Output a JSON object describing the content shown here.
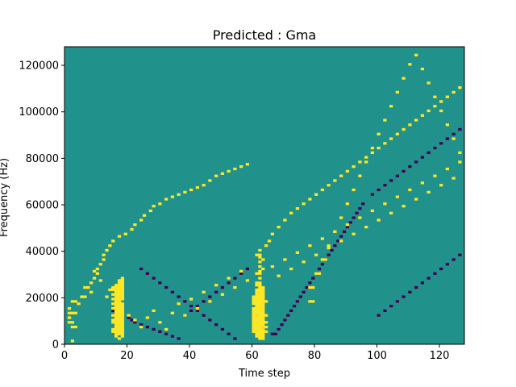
{
  "chart_data": {
    "type": "heatmap",
    "title": "Predicted : Gma",
    "xlabel": "Time step",
    "ylabel": "Frequency (Hz)",
    "xlim": [
      0,
      128
    ],
    "ylim": [
      0,
      128000
    ],
    "xticks": [
      0,
      20,
      40,
      60,
      80,
      100,
      120
    ],
    "yticks": [
      0,
      20000,
      40000,
      60000,
      80000,
      100000,
      120000
    ],
    "xtick_labels": [
      "0",
      "20",
      "40",
      "60",
      "80",
      "100",
      "120"
    ],
    "ytick_labels": [
      "0",
      "20000",
      "40000",
      "60000",
      "80000",
      "100000",
      "120000"
    ],
    "grid": false,
    "n_time_steps": 128,
    "n_freq_bins": 128,
    "levels": [
      -1,
      0,
      1
    ],
    "colors": {
      "-1": "#440154",
      "0": "#21918c",
      "1": "#fde725"
    },
    "background_level": 0,
    "high_cells": [
      [
        17,
        2
      ],
      [
        16,
        3
      ],
      [
        18,
        3
      ],
      [
        16,
        4
      ],
      [
        17,
        4
      ],
      [
        18,
        4
      ],
      [
        15,
        5
      ],
      [
        16,
        5
      ],
      [
        17,
        5
      ],
      [
        18,
        5
      ],
      [
        15,
        6
      ],
      [
        16,
        6
      ],
      [
        17,
        6
      ],
      [
        18,
        6
      ],
      [
        16,
        7
      ],
      [
        17,
        7
      ],
      [
        18,
        7
      ],
      [
        16,
        8
      ],
      [
        17,
        8
      ],
      [
        18,
        8
      ],
      [
        15,
        9
      ],
      [
        16,
        9
      ],
      [
        17,
        9
      ],
      [
        18,
        9
      ],
      [
        15,
        10
      ],
      [
        16,
        10
      ],
      [
        17,
        10
      ],
      [
        18,
        10
      ],
      [
        16,
        11
      ],
      [
        17,
        11
      ],
      [
        18,
        11
      ],
      [
        15,
        12
      ],
      [
        16,
        12
      ],
      [
        17,
        12
      ],
      [
        18,
        12
      ],
      [
        16,
        13
      ],
      [
        17,
        13
      ],
      [
        18,
        13
      ],
      [
        16,
        14
      ],
      [
        17,
        14
      ],
      [
        18,
        14
      ],
      [
        15,
        15
      ],
      [
        16,
        15
      ],
      [
        17,
        15
      ],
      [
        18,
        15
      ],
      [
        16,
        16
      ],
      [
        17,
        16
      ],
      [
        18,
        16
      ],
      [
        15,
        17
      ],
      [
        16,
        17
      ],
      [
        17,
        17
      ],
      [
        18,
        17
      ],
      [
        16,
        18
      ],
      [
        17,
        18
      ],
      [
        15,
        19
      ],
      [
        16,
        19
      ],
      [
        17,
        19
      ],
      [
        18,
        19
      ],
      [
        16,
        20
      ],
      [
        17,
        20
      ],
      [
        18,
        20
      ],
      [
        15,
        21
      ],
      [
        16,
        21
      ],
      [
        17,
        21
      ],
      [
        18,
        21
      ],
      [
        16,
        22
      ],
      [
        17,
        22
      ],
      [
        18,
        22
      ],
      [
        14,
        23
      ],
      [
        15,
        23
      ],
      [
        16,
        23
      ],
      [
        17,
        23
      ],
      [
        18,
        23
      ],
      [
        15,
        24
      ],
      [
        16,
        24
      ],
      [
        17,
        24
      ],
      [
        18,
        24
      ],
      [
        16,
        25
      ],
      [
        17,
        25
      ],
      [
        18,
        25
      ],
      [
        17,
        26
      ],
      [
        18,
        26
      ],
      [
        17,
        27
      ],
      [
        18,
        27
      ],
      [
        18,
        28
      ],
      [
        62,
        2
      ],
      [
        63,
        2
      ],
      [
        61,
        3
      ],
      [
        62,
        3
      ],
      [
        63,
        3
      ],
      [
        61,
        4
      ],
      [
        62,
        4
      ],
      [
        63,
        4
      ],
      [
        60,
        5
      ],
      [
        61,
        5
      ],
      [
        62,
        5
      ],
      [
        63,
        5
      ],
      [
        64,
        5
      ],
      [
        60,
        6
      ],
      [
        61,
        6
      ],
      [
        62,
        6
      ],
      [
        63,
        6
      ],
      [
        60,
        7
      ],
      [
        61,
        7
      ],
      [
        62,
        7
      ],
      [
        63,
        7
      ],
      [
        64,
        7
      ],
      [
        60,
        8
      ],
      [
        61,
        8
      ],
      [
        62,
        8
      ],
      [
        63,
        8
      ],
      [
        60,
        9
      ],
      [
        61,
        9
      ],
      [
        62,
        9
      ],
      [
        63,
        9
      ],
      [
        64,
        9
      ],
      [
        60,
        10
      ],
      [
        61,
        10
      ],
      [
        62,
        10
      ],
      [
        63,
        10
      ],
      [
        60,
        11
      ],
      [
        61,
        11
      ],
      [
        62,
        11
      ],
      [
        63,
        11
      ],
      [
        60,
        12
      ],
      [
        61,
        12
      ],
      [
        62,
        12
      ],
      [
        63,
        12
      ],
      [
        64,
        12
      ],
      [
        60,
        13
      ],
      [
        61,
        13
      ],
      [
        62,
        13
      ],
      [
        63,
        13
      ],
      [
        60,
        14
      ],
      [
        61,
        14
      ],
      [
        62,
        14
      ],
      [
        63,
        14
      ],
      [
        60,
        15
      ],
      [
        61,
        15
      ],
      [
        62,
        15
      ],
      [
        63,
        15
      ],
      [
        61,
        16
      ],
      [
        62,
        16
      ],
      [
        63,
        16
      ],
      [
        60,
        17
      ],
      [
        61,
        17
      ],
      [
        62,
        17
      ],
      [
        63,
        17
      ],
      [
        60,
        18
      ],
      [
        61,
        18
      ],
      [
        62,
        18
      ],
      [
        63,
        18
      ],
      [
        64,
        18
      ],
      [
        60,
        19
      ],
      [
        61,
        19
      ],
      [
        62,
        19
      ],
      [
        63,
        19
      ],
      [
        60,
        20
      ],
      [
        61,
        20
      ],
      [
        62,
        20
      ],
      [
        63,
        20
      ],
      [
        61,
        21
      ],
      [
        62,
        21
      ],
      [
        63,
        21
      ],
      [
        61,
        22
      ],
      [
        62,
        22
      ],
      [
        63,
        22
      ],
      [
        61,
        23
      ],
      [
        62,
        23
      ],
      [
        63,
        23
      ],
      [
        62,
        24
      ],
      [
        63,
        24
      ],
      [
        61,
        25
      ],
      [
        62,
        25
      ],
      [
        61,
        26
      ],
      [
        62,
        26
      ],
      [
        62,
        28
      ],
      [
        61,
        30
      ],
      [
        62,
        30
      ],
      [
        62,
        31
      ],
      [
        63,
        32
      ],
      [
        62,
        33
      ],
      [
        62,
        35
      ],
      [
        63,
        36
      ],
      [
        62,
        37
      ],
      [
        61,
        38
      ],
      [
        62,
        38
      ],
      [
        62,
        40
      ],
      [
        2,
        1
      ],
      [
        2,
        7
      ],
      [
        3,
        7
      ],
      [
        1,
        9
      ],
      [
        2,
        9
      ],
      [
        1,
        11
      ],
      [
        1,
        13
      ],
      [
        2,
        13
      ],
      [
        3,
        13
      ],
      [
        1,
        15
      ],
      [
        2,
        18
      ],
      [
        3,
        18
      ],
      [
        5,
        20
      ],
      [
        6,
        20
      ],
      [
        8,
        22
      ],
      [
        7,
        24
      ],
      [
        8,
        26
      ],
      [
        9,
        28
      ],
      [
        10,
        30
      ],
      [
        10,
        32
      ],
      [
        11,
        34
      ],
      [
        12,
        36
      ],
      [
        12,
        38
      ],
      [
        13,
        40
      ],
      [
        14,
        42
      ],
      [
        15,
        44
      ],
      [
        17,
        46
      ],
      [
        19,
        47
      ],
      [
        21,
        49
      ],
      [
        22,
        51
      ],
      [
        24,
        53
      ],
      [
        25,
        55
      ],
      [
        27,
        57
      ],
      [
        28,
        59
      ],
      [
        30,
        60
      ],
      [
        32,
        62
      ],
      [
        34,
        63
      ],
      [
        36,
        64
      ],
      [
        38,
        65
      ],
      [
        40,
        66
      ],
      [
        42,
        67
      ],
      [
        44,
        68
      ],
      [
        46,
        70
      ],
      [
        48,
        72
      ],
      [
        50,
        73
      ],
      [
        52,
        74
      ],
      [
        54,
        75
      ],
      [
        56,
        76
      ],
      [
        58,
        77
      ],
      [
        64,
        42
      ],
      [
        65,
        44
      ],
      [
        66,
        47
      ],
      [
        68,
        50
      ],
      [
        70,
        53
      ],
      [
        72,
        56
      ],
      [
        74,
        58
      ],
      [
        76,
        60
      ],
      [
        78,
        62
      ],
      [
        80,
        64
      ],
      [
        82,
        66
      ],
      [
        84,
        68
      ],
      [
        86,
        70
      ],
      [
        88,
        72
      ],
      [
        90,
        74
      ],
      [
        92,
        76
      ],
      [
        94,
        78
      ],
      [
        96,
        80
      ],
      [
        98,
        82
      ],
      [
        100,
        84
      ],
      [
        102,
        86
      ],
      [
        104,
        88
      ],
      [
        106,
        90
      ],
      [
        108,
        92
      ],
      [
        110,
        94
      ],
      [
        112,
        96
      ],
      [
        114,
        98
      ],
      [
        116,
        100
      ],
      [
        118,
        102
      ],
      [
        120,
        104
      ],
      [
        122,
        106
      ],
      [
        124,
        108
      ],
      [
        126,
        110
      ],
      [
        4,
        17
      ],
      [
        6,
        24
      ],
      [
        9,
        31
      ],
      [
        11,
        27
      ],
      [
        13,
        20
      ],
      [
        20,
        12
      ],
      [
        22,
        10
      ],
      [
        24,
        7
      ],
      [
        26,
        11
      ],
      [
        28,
        14
      ],
      [
        30,
        9
      ],
      [
        32,
        6
      ],
      [
        34,
        13
      ],
      [
        36,
        17
      ],
      [
        38,
        12
      ],
      [
        40,
        19
      ],
      [
        42,
        15
      ],
      [
        44,
        22
      ],
      [
        46,
        18
      ],
      [
        48,
        25
      ],
      [
        50,
        21
      ],
      [
        52,
        28
      ],
      [
        54,
        24
      ],
      [
        56,
        31
      ],
      [
        58,
        27
      ],
      [
        66,
        33
      ],
      [
        68,
        29
      ],
      [
        70,
        36
      ],
      [
        72,
        32
      ],
      [
        74,
        39
      ],
      [
        76,
        35
      ],
      [
        78,
        42
      ],
      [
        80,
        38
      ],
      [
        82,
        45
      ],
      [
        84,
        41
      ],
      [
        86,
        48
      ],
      [
        88,
        44
      ],
      [
        90,
        51
      ],
      [
        92,
        47
      ],
      [
        94,
        54
      ],
      [
        96,
        50
      ],
      [
        98,
        57
      ],
      [
        100,
        53
      ],
      [
        102,
        60
      ],
      [
        104,
        56
      ],
      [
        106,
        63
      ],
      [
        108,
        59
      ],
      [
        110,
        66
      ],
      [
        112,
        62
      ],
      [
        114,
        69
      ],
      [
        116,
        65
      ],
      [
        118,
        72
      ],
      [
        120,
        68
      ],
      [
        122,
        75
      ],
      [
        124,
        71
      ],
      [
        126,
        78
      ],
      [
        78,
        18
      ],
      [
        79,
        18
      ],
      [
        78,
        24
      ],
      [
        79,
        24
      ],
      [
        80,
        30
      ],
      [
        81,
        30
      ],
      [
        82,
        36
      ],
      [
        83,
        36
      ],
      [
        84,
        42
      ],
      [
        86,
        48
      ],
      [
        88,
        54
      ],
      [
        90,
        60
      ],
      [
        92,
        66
      ],
      [
        94,
        72
      ],
      [
        96,
        78
      ],
      [
        98,
        84
      ],
      [
        100,
        90
      ],
      [
        102,
        96
      ],
      [
        104,
        102
      ],
      [
        106,
        108
      ],
      [
        108,
        114
      ],
      [
        110,
        120
      ],
      [
        112,
        124
      ],
      [
        114,
        118
      ],
      [
        116,
        112
      ],
      [
        118,
        106
      ],
      [
        120,
        100
      ],
      [
        122,
        94
      ],
      [
        124,
        88
      ],
      [
        126,
        82
      ]
    ],
    "low_cells": [
      [
        15,
        14
      ],
      [
        16,
        13
      ],
      [
        20,
        11
      ],
      [
        21,
        10
      ],
      [
        22,
        9
      ],
      [
        24,
        8
      ],
      [
        26,
        7
      ],
      [
        28,
        6
      ],
      [
        30,
        5
      ],
      [
        32,
        4
      ],
      [
        34,
        3
      ],
      [
        36,
        2
      ],
      [
        38,
        12
      ],
      [
        40,
        14
      ],
      [
        42,
        16
      ],
      [
        44,
        18
      ],
      [
        46,
        20
      ],
      [
        48,
        22
      ],
      [
        50,
        24
      ],
      [
        52,
        26
      ],
      [
        54,
        28
      ],
      [
        56,
        30
      ],
      [
        58,
        32
      ],
      [
        66,
        4
      ],
      [
        67,
        4
      ],
      [
        68,
        6
      ],
      [
        69,
        8
      ],
      [
        70,
        10
      ],
      [
        71,
        12
      ],
      [
        72,
        14
      ],
      [
        73,
        16
      ],
      [
        74,
        18
      ],
      [
        75,
        20
      ],
      [
        76,
        22
      ],
      [
        77,
        24
      ],
      [
        78,
        26
      ],
      [
        79,
        28
      ],
      [
        80,
        30
      ],
      [
        81,
        32
      ],
      [
        82,
        34
      ],
      [
        83,
        36
      ],
      [
        84,
        38
      ],
      [
        85,
        40
      ],
      [
        86,
        42
      ],
      [
        87,
        44
      ],
      [
        88,
        46
      ],
      [
        89,
        48
      ],
      [
        90,
        50
      ],
      [
        91,
        52
      ],
      [
        92,
        54
      ],
      [
        93,
        56
      ],
      [
        94,
        58
      ],
      [
        95,
        60
      ],
      [
        24,
        32
      ],
      [
        26,
        30
      ],
      [
        28,
        28
      ],
      [
        30,
        26
      ],
      [
        32,
        24
      ],
      [
        34,
        22
      ],
      [
        36,
        20
      ],
      [
        38,
        18
      ],
      [
        40,
        16
      ],
      [
        42,
        14
      ],
      [
        44,
        12
      ],
      [
        46,
        10
      ],
      [
        48,
        8
      ],
      [
        50,
        6
      ],
      [
        52,
        4
      ],
      [
        54,
        2
      ],
      [
        100,
        12
      ],
      [
        102,
        14
      ],
      [
        104,
        16
      ],
      [
        106,
        18
      ],
      [
        108,
        20
      ],
      [
        110,
        22
      ],
      [
        112,
        24
      ],
      [
        114,
        26
      ],
      [
        116,
        28
      ],
      [
        118,
        30
      ],
      [
        120,
        32
      ],
      [
        122,
        34
      ],
      [
        124,
        36
      ],
      [
        126,
        38
      ],
      [
        98,
        64
      ],
      [
        100,
        66
      ],
      [
        102,
        68
      ],
      [
        104,
        70
      ],
      [
        106,
        72
      ],
      [
        108,
        74
      ],
      [
        110,
        76
      ],
      [
        112,
        78
      ],
      [
        114,
        80
      ],
      [
        116,
        82
      ],
      [
        118,
        84
      ],
      [
        120,
        86
      ],
      [
        122,
        88
      ],
      [
        124,
        90
      ],
      [
        126,
        92
      ]
    ]
  }
}
